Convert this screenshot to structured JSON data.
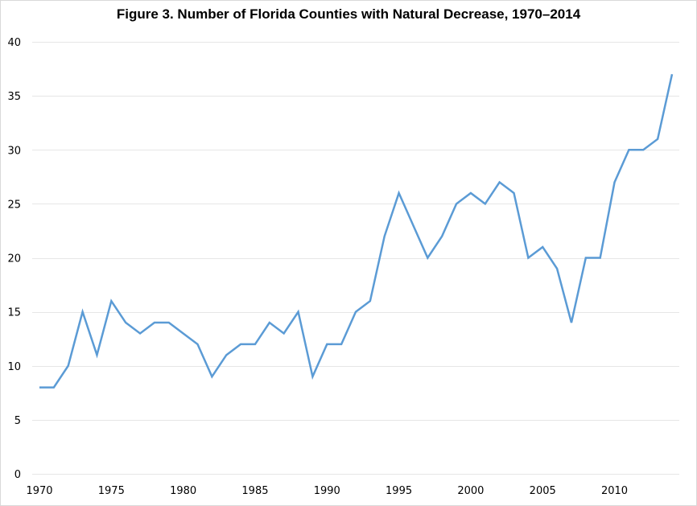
{
  "chart_data": {
    "type": "line",
    "title": "Figure 3. Number of Florida Counties with Natural Decrease, 1970–2014",
    "xlabel": "",
    "ylabel": "",
    "xlim": [
      1970,
      2014
    ],
    "ylim": [
      0,
      40
    ],
    "grid": true,
    "legend": "none",
    "x_ticks": [
      "1970",
      "1975",
      "1980",
      "1985",
      "1990",
      "1995",
      "2000",
      "2005",
      "2010"
    ],
    "y_ticks": [
      "0",
      "5",
      "10",
      "15",
      "20",
      "25",
      "30",
      "35",
      "40"
    ],
    "line_color": "#5b9bd5",
    "grid_color": "#e6e6e6",
    "series": [
      {
        "name": "Counties with natural decrease",
        "x": [
          1970,
          1971,
          1972,
          1973,
          1974,
          1975,
          1976,
          1977,
          1978,
          1979,
          1980,
          1981,
          1982,
          1983,
          1984,
          1985,
          1986,
          1987,
          1988,
          1989,
          1990,
          1991,
          1992,
          1993,
          1994,
          1995,
          1996,
          1997,
          1998,
          1999,
          2000,
          2001,
          2002,
          2003,
          2004,
          2005,
          2006,
          2007,
          2008,
          2009,
          2010,
          2011,
          2012,
          2013,
          2014
        ],
        "values": [
          8,
          8,
          10,
          15,
          11,
          16,
          14,
          13,
          14,
          14,
          13,
          12,
          9,
          11,
          12,
          12,
          14,
          13,
          15,
          9,
          12,
          12,
          15,
          16,
          22,
          26,
          23,
          20,
          22,
          25,
          26,
          25,
          27,
          26,
          20,
          21,
          19,
          14,
          20,
          20,
          27,
          30,
          30,
          31,
          37
        ]
      }
    ]
  }
}
